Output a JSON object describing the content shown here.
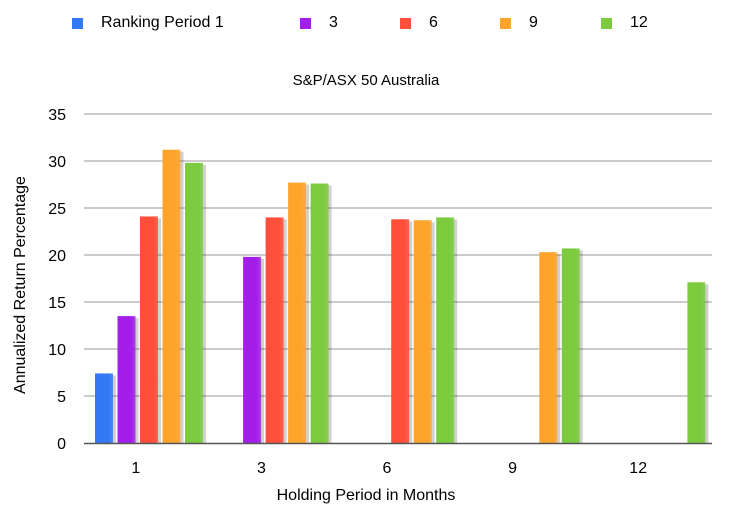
{
  "chart_data": {
    "type": "bar",
    "title": "S&P/ASX 50 Australia",
    "xlabel": "Holding Period in Months",
    "ylabel": "Annualized Return Percentage",
    "ylim": [
      0,
      35
    ],
    "yticks": [
      0,
      5,
      10,
      15,
      20,
      25,
      30,
      35
    ],
    "grid": true,
    "legend_position": "top",
    "categories": [
      "1",
      "3",
      "6",
      "9",
      "12"
    ],
    "series": [
      {
        "name": "Ranking Period 1",
        "color": "#3478F6",
        "values": [
          7.4,
          null,
          null,
          null,
          null
        ]
      },
      {
        "name": "3",
        "color": "#A31EE8",
        "values": [
          13.5,
          19.8,
          null,
          null,
          null
        ]
      },
      {
        "name": "6",
        "color": "#FF4F3A",
        "values": [
          24.1,
          24.0,
          23.8,
          null,
          null
        ]
      },
      {
        "name": "9",
        "color": "#FFA42B",
        "values": [
          31.2,
          27.7,
          23.7,
          20.3,
          null
        ]
      },
      {
        "name": "12",
        "color": "#7CCB3F",
        "values": [
          29.8,
          27.6,
          24.0,
          20.7,
          17.1
        ]
      }
    ]
  }
}
